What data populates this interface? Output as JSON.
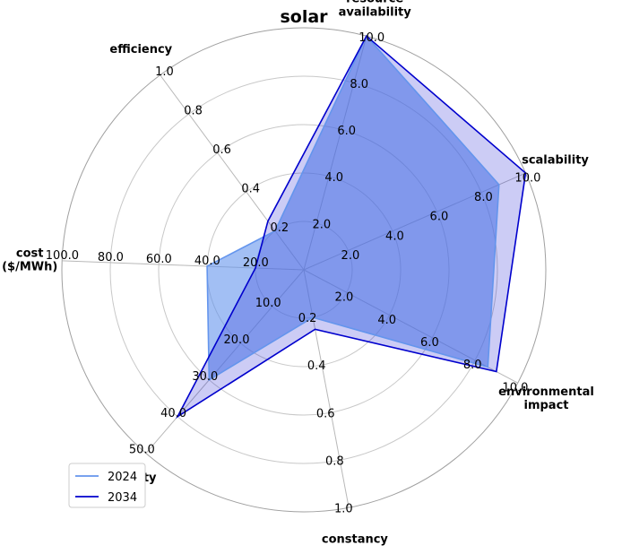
{
  "chart_data": {
    "type": "radar",
    "title": "solar",
    "axes": [
      {
        "label": "resource\navailability",
        "max": 10.0,
        "ticks": [
          "2.0",
          "4.0",
          "6.0",
          "8.0",
          "10.0"
        ]
      },
      {
        "label": "scalability",
        "max": 10.0,
        "ticks": [
          "2.0",
          "4.0",
          "6.0",
          "8.0",
          "10.0"
        ]
      },
      {
        "label": "environmental\nimpact",
        "max": 10.0,
        "ticks": [
          "2.0",
          "4.0",
          "6.0",
          "8.0",
          "10.0"
        ]
      },
      {
        "label": "constancy",
        "max": 1.0,
        "ticks": [
          "0.2",
          "0.4",
          "0.6",
          "0.8",
          "1.0"
        ]
      },
      {
        "label": "reliability",
        "max": 50.0,
        "ticks": [
          "10.0",
          "20.0",
          "30.0",
          "40.0",
          "50.0"
        ]
      },
      {
        "label": "cost\n($/MWh)",
        "max": 100.0,
        "ticks": [
          "20.0",
          "40.0",
          "60.0",
          "80.0",
          "100.0"
        ]
      },
      {
        "label": "efficiency",
        "max": 1.0,
        "ticks": [
          "0.2",
          "0.4",
          "0.6",
          "0.8",
          "1.0"
        ]
      }
    ],
    "series": [
      {
        "name": "2024",
        "color": "#6495ED",
        "fill": "#6495ED",
        "fill_opacity": 0.6,
        "values": [
          10.0,
          8.8,
          8.6,
          0.2,
          30.0,
          40.0,
          0.2
        ]
      },
      {
        "name": "2034",
        "color": "#0000CD",
        "fill": "#0000CD",
        "fill_opacity": 0.2,
        "values": [
          10.0,
          10.0,
          9.0,
          0.25,
          40.0,
          20.0,
          0.25
        ]
      }
    ],
    "grid": true,
    "legend_position": "lower-left"
  }
}
